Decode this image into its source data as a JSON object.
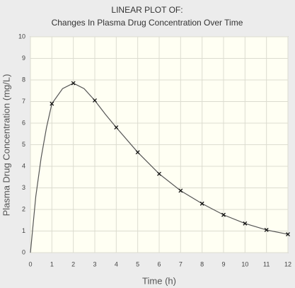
{
  "chart_data": {
    "type": "line",
    "title": "LINEAR PLOT OF:",
    "subtitle": "Changes In Plasma Drug Concentration Over Time",
    "x_label": "Time  (h)",
    "y_label": "Plasma Drug Concentration  (mg/L)",
    "xlim": [
      0,
      12
    ],
    "ylim": [
      0,
      10
    ],
    "xticks": [
      0,
      1,
      2,
      3,
      4,
      5,
      6,
      7,
      8,
      9,
      10,
      11,
      12
    ],
    "yticks": [
      0,
      1,
      2,
      3,
      4,
      5,
      6,
      7,
      8,
      9,
      10
    ],
    "grid": true,
    "series": [
      {
        "type": "line",
        "color": "#555555",
        "x": [
          0,
          0.25,
          0.5,
          0.75,
          1,
          1.5,
          2,
          2.5,
          3,
          3.5,
          4,
          5,
          6,
          7,
          8,
          9,
          10,
          11,
          12
        ],
        "values": [
          0,
          2.6,
          4.4,
          5.8,
          6.9,
          7.6,
          7.85,
          7.6,
          7.05,
          6.4,
          5.8,
          4.65,
          3.65,
          2.87,
          2.27,
          1.75,
          1.35,
          1.05,
          0.85
        ]
      },
      {
        "type": "scatter",
        "marker": "x",
        "color": "#111111",
        "x": [
          1,
          2,
          3,
          4,
          5,
          6,
          7,
          8,
          9,
          10,
          11,
          12
        ],
        "values": [
          6.9,
          7.85,
          7.05,
          5.8,
          4.65,
          3.65,
          2.87,
          2.27,
          1.75,
          1.35,
          1.05,
          0.85
        ]
      }
    ]
  }
}
